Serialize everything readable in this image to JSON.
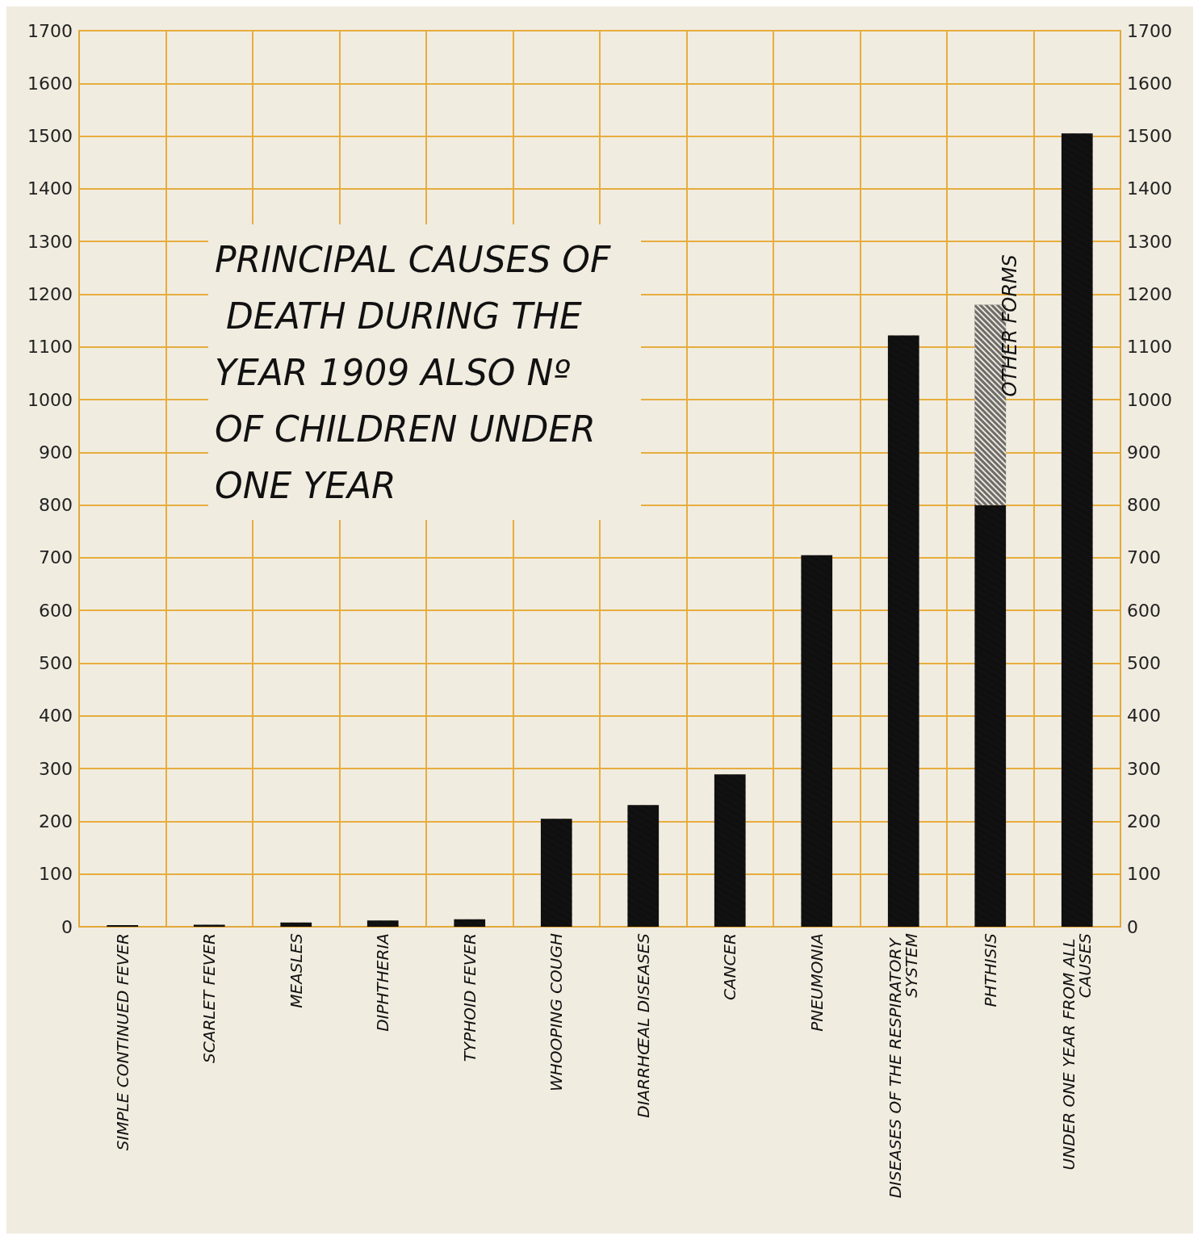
{
  "chart_data": {
    "type": "bar",
    "title": "PRINCIPAL CAUSES OF DEATH DURING THE YEAR 1909 ALSO Nº OF CHILDREN UNDER ONE YEAR",
    "categories": [
      "SIMPLE CONTINUED FEVER",
      "SCARLET FEVER",
      "MEASLES",
      "DIPHTHERIA",
      "TYPHOID FEVER",
      "WHOOPING COUGH",
      "DIARRHŒAL DISEASES",
      "CANCER",
      "PNEUMONIA",
      "DISEASES OF THE RESPIRATORY SYSTEM",
      "PHTHISIS",
      "UNDER ONE YEAR FROM ALL CAUSES"
    ],
    "stacked": true,
    "series": [
      {
        "color": "#111111",
        "values": [
          3,
          4,
          8,
          12,
          14,
          205,
          231,
          289,
          705,
          1122,
          800,
          1505
        ]
      },
      {
        "name": "OTHER FORMS",
        "color": "#6b6b6b",
        "values": [
          null,
          null,
          null,
          null,
          null,
          null,
          null,
          null,
          null,
          null,
          380,
          null
        ]
      }
    ],
    "ylim": [
      0,
      1700
    ],
    "yticks": [
      0,
      100,
      200,
      300,
      400,
      500,
      600,
      700,
      800,
      900,
      1000,
      1100,
      1200,
      1300,
      1400,
      1500,
      1600,
      1700
    ],
    "y2lim": [
      0,
      1700
    ],
    "y2ticks": [
      0,
      100,
      200,
      300,
      400,
      500,
      600,
      700,
      800,
      900,
      1000,
      1100,
      1200,
      1300,
      1400,
      1500,
      1600,
      1700
    ],
    "grid": true
  }
}
